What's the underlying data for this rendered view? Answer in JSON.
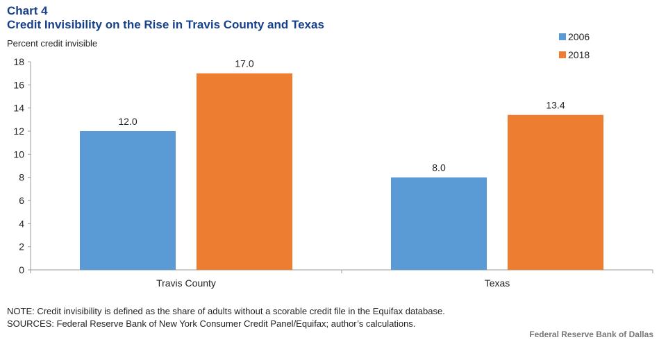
{
  "header": {
    "chart_number": "Chart 4",
    "title": "Credit Invisibility on the Rise in  Travis County and Texas",
    "unit_label": "Percent credit invisible"
  },
  "footer": {
    "note": "NOTE: Credit invisibility is defined as the share of adults without a scorable credit file in the Equifax database.",
    "sources": "SOURCES: Federal Reserve Bank of New York Consumer Credit Panel/Equifax; author’s calculations.",
    "brand": "Federal Reserve Bank of Dallas"
  },
  "chart_data": {
    "type": "bar",
    "title": "Credit Invisibility on the Rise in  Travis County and Texas",
    "ylabel": "Percent credit invisible",
    "xlabel": "",
    "categories": [
      "Travis County",
      "Texas"
    ],
    "series": [
      {
        "name": "2006",
        "color": "#5b9bd5",
        "values": [
          12.0,
          8.0
        ],
        "labels": [
          "12.0",
          "8.0"
        ]
      },
      {
        "name": "2018",
        "color": "#ed7d31",
        "values": [
          17.0,
          13.4
        ],
        "labels": [
          "17.0",
          "13.4"
        ]
      }
    ],
    "ylim": [
      0,
      18
    ],
    "yticks": [
      0,
      2,
      4,
      6,
      8,
      10,
      12,
      14,
      16,
      18
    ],
    "grid": false,
    "legend": "top-right"
  }
}
